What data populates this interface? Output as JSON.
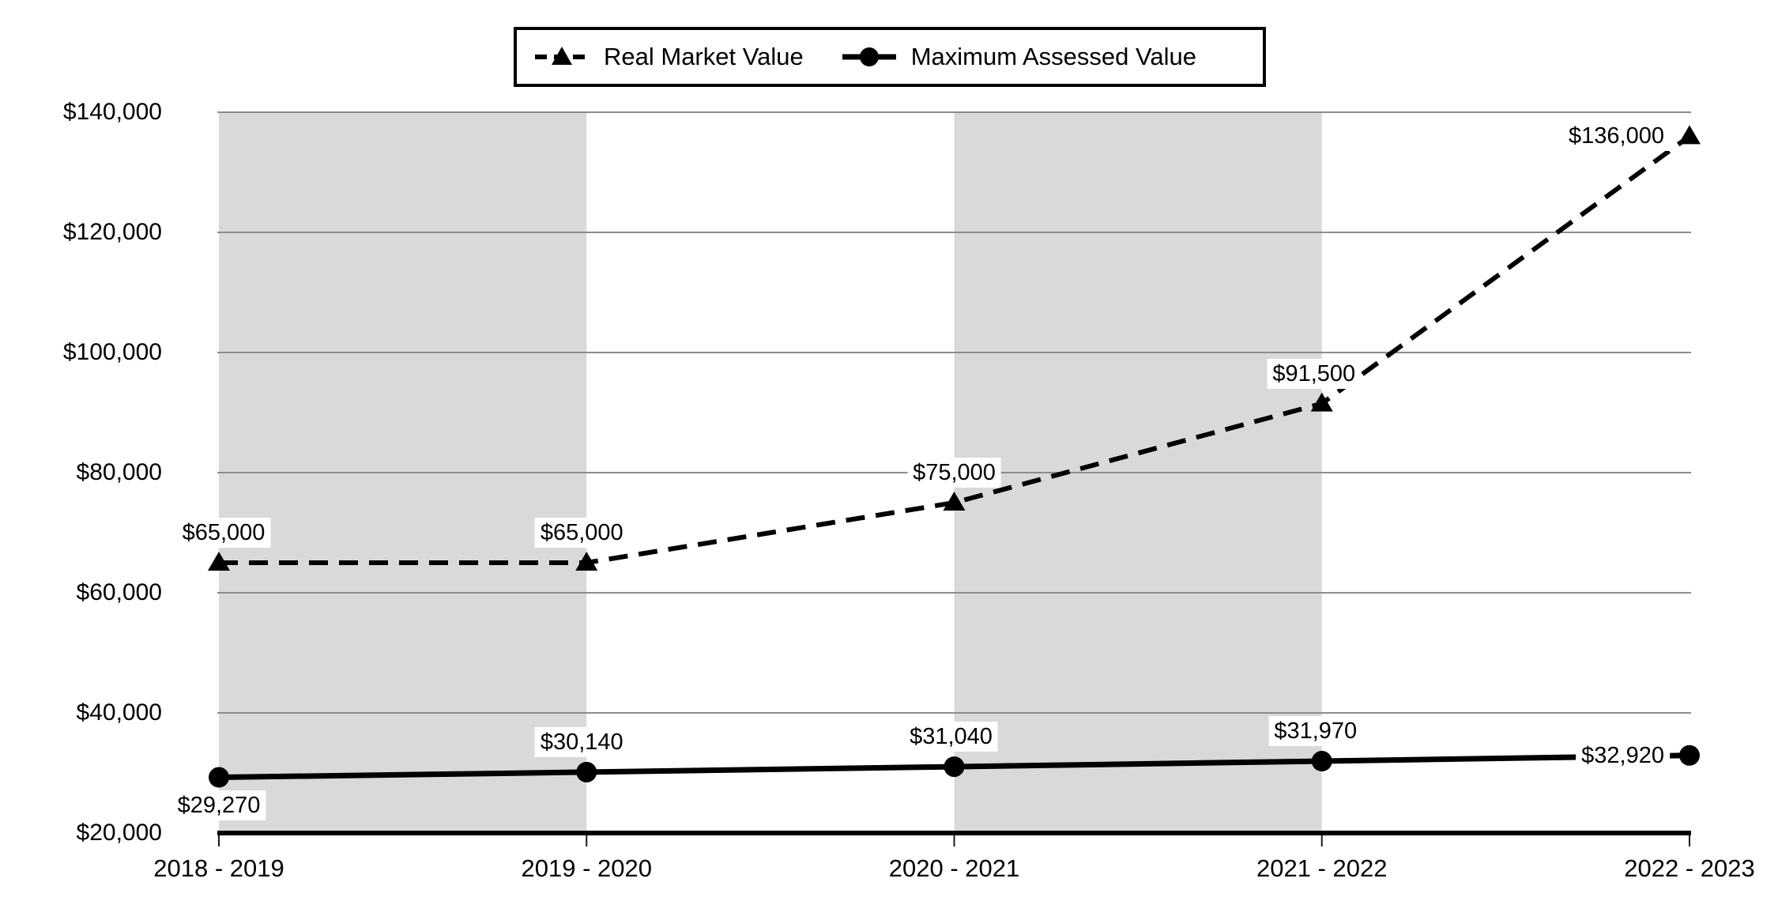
{
  "chart_data": {
    "type": "line",
    "title": "",
    "categories": [
      "2018 - 2019",
      "2019 - 2020",
      "2020 - 2021",
      "2021 - 2022",
      "2022 - 2023"
    ],
    "series": [
      {
        "name": "Real Market Value",
        "marker": "triangle",
        "line_style": "dashed",
        "values": [
          65000,
          65000,
          75000,
          91500,
          136000
        ],
        "data_labels": [
          "$65,000",
          "$65,000",
          "$75,000",
          "$91,500",
          "$136,000"
        ],
        "label_positions": [
          "above",
          "above",
          "above",
          "above",
          "left"
        ]
      },
      {
        "name": "Maximum Assessed Value",
        "marker": "circle",
        "line_style": "solid",
        "values": [
          29270,
          30140,
          31040,
          31970,
          32920
        ],
        "data_labels": [
          "$29,270",
          "$30,140",
          "$31,040",
          "$31,970",
          "$32,920"
        ],
        "label_positions": [
          "below",
          "above",
          "above",
          "above",
          "left"
        ]
      }
    ],
    "y_axis": {
      "min": 20000,
      "max": 140000,
      "step": 20000,
      "tick_labels": [
        "$20,000",
        "$40,000",
        "$60,000",
        "$80,000",
        "$100,000",
        "$120,000",
        "$140,000"
      ]
    },
    "x_axis": {
      "tick_labels": [
        "2018 - 2019",
        "2019 - 2020",
        "2020 - 2021",
        "2021 - 2022",
        "2022 - 2023"
      ]
    },
    "legend": {
      "position": "top-center",
      "entries": [
        "Real Market Value",
        "Maximum Assessed Value"
      ]
    },
    "grid": "horizontal",
    "plot_bands": {
      "spans": [
        [
          0,
          1
        ],
        [
          2,
          3
        ]
      ]
    },
    "colors": {
      "series": "#000000",
      "gridline": "#8c8c8c",
      "band": "#d9d9d9",
      "background": "#ffffff",
      "text": "#000000"
    }
  }
}
